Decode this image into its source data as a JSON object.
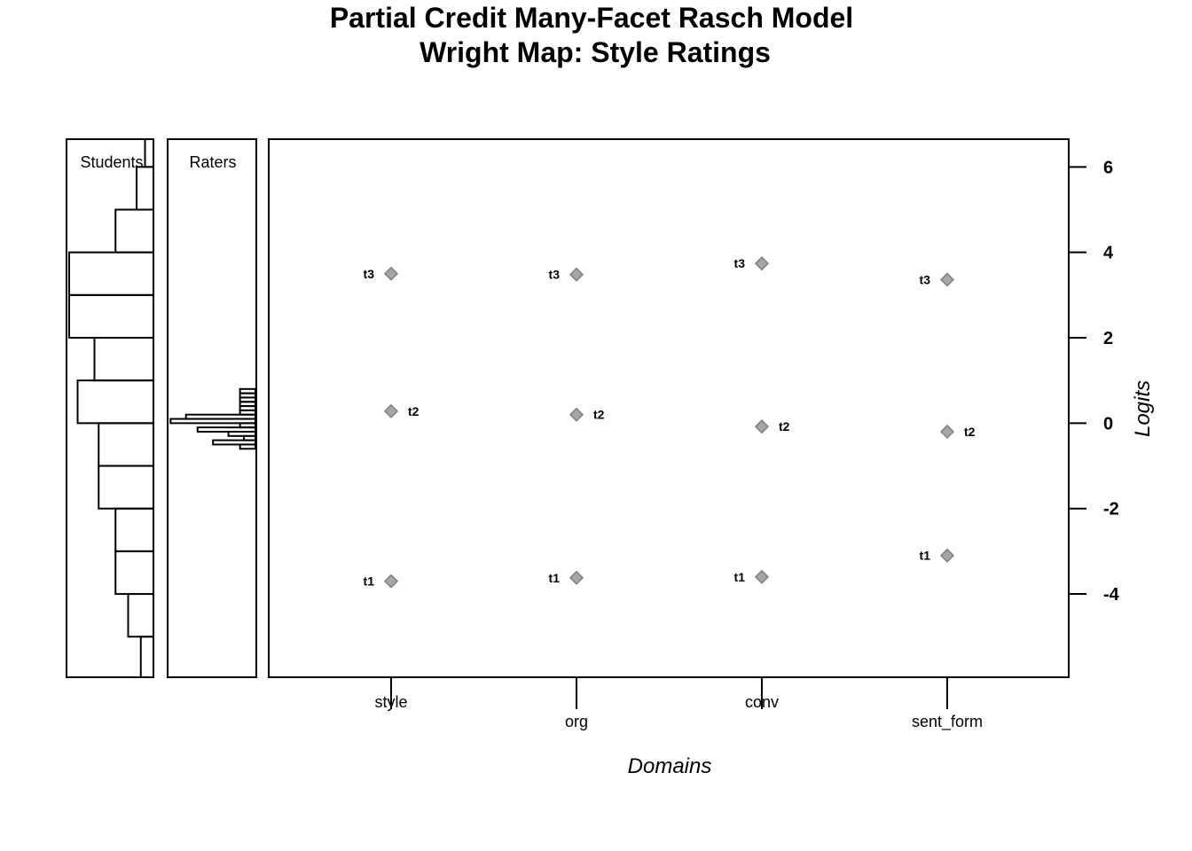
{
  "chart_data": {
    "type": "scatter",
    "title": [
      "Partial Credit Many-Facet Rasch Model",
      "Wright Map: Style Ratings"
    ],
    "xlabel": "Domains",
    "ylabel": "Logits",
    "ylim": [
      -5.95,
      6.65
    ],
    "y_ticks": [
      6,
      4,
      2,
      0,
      -2,
      -4
    ],
    "y_tick_labels": [
      "6",
      "4",
      "2",
      "0",
      "-2",
      "-4"
    ],
    "categories": [
      "style",
      "org",
      "conv",
      "sent_form"
    ],
    "series": [
      {
        "name": "t1",
        "values": [
          -3.7,
          -3.62,
          -3.6,
          -3.1
        ]
      },
      {
        "name": "t2",
        "values": [
          0.28,
          0.2,
          -0.08,
          -0.2
        ]
      },
      {
        "name": "t3",
        "values": [
          3.5,
          3.48,
          3.74,
          3.36
        ]
      }
    ],
    "marker_color": "#a6a6a6",
    "marker_stroke": "#7f7f7f",
    "side_panels": {
      "students": {
        "label": "Students",
        "bins": [
          {
            "from": 6.0,
            "to": 7.0,
            "count": 2
          },
          {
            "from": 5.0,
            "to": 6.0,
            "count": 4
          },
          {
            "from": 4.0,
            "to": 5.0,
            "count": 9
          },
          {
            "from": 3.0,
            "to": 4.0,
            "count": 20
          },
          {
            "from": 2.0,
            "to": 3.0,
            "count": 20
          },
          {
            "from": 1.0,
            "to": 2.0,
            "count": 14
          },
          {
            "from": 0.0,
            "to": 1.0,
            "count": 18
          },
          {
            "from": -1.0,
            "to": 0.0,
            "count": 13
          },
          {
            "from": -2.0,
            "to": -1.0,
            "count": 13
          },
          {
            "from": -3.0,
            "to": -2.0,
            "count": 9
          },
          {
            "from": -4.0,
            "to": -3.0,
            "count": 9
          },
          {
            "from": -5.0,
            "to": -4.0,
            "count": 6
          },
          {
            "from": -6.0,
            "to": -5.0,
            "count": 3
          }
        ]
      },
      "raters": {
        "label": "Raters",
        "bins": [
          {
            "from": 0.7,
            "to": 0.8,
            "count": 4
          },
          {
            "from": 0.6,
            "to": 0.7,
            "count": 4
          },
          {
            "from": 0.5,
            "to": 0.6,
            "count": 4
          },
          {
            "from": 0.4,
            "to": 0.5,
            "count": 4
          },
          {
            "from": 0.3,
            "to": 0.4,
            "count": 4
          },
          {
            "from": 0.2,
            "to": 0.3,
            "count": 4
          },
          {
            "from": 0.1,
            "to": 0.2,
            "count": 18
          },
          {
            "from": 0.0,
            "to": 0.1,
            "count": 22
          },
          {
            "from": -0.1,
            "to": 0.0,
            "count": 4
          },
          {
            "from": -0.2,
            "to": -0.1,
            "count": 15
          },
          {
            "from": -0.3,
            "to": -0.2,
            "count": 7
          },
          {
            "from": -0.4,
            "to": -0.3,
            "count": 3
          },
          {
            "from": -0.5,
            "to": -0.4,
            "count": 11
          },
          {
            "from": -0.6,
            "to": -0.5,
            "count": 4
          }
        ]
      }
    }
  }
}
